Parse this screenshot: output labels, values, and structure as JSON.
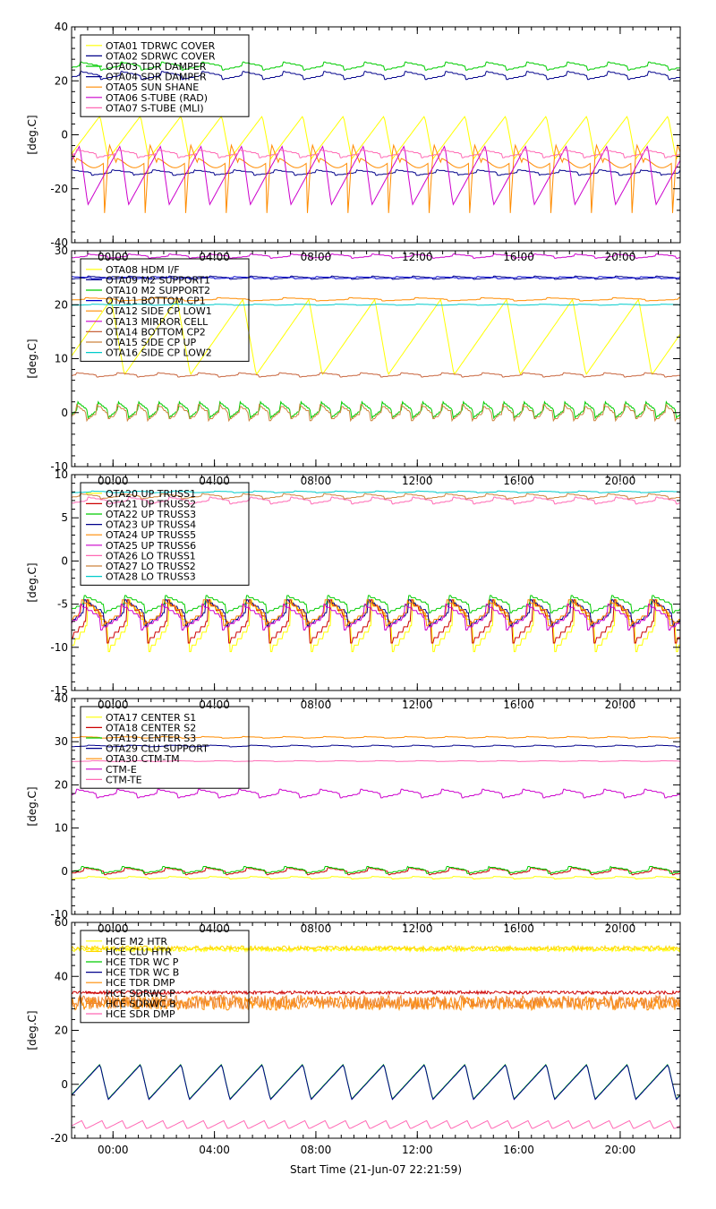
{
  "figure": {
    "xlabel": "Start Time (21-Jun-07 22:21:59)"
  },
  "chart_data": [
    {
      "type": "line",
      "ylabel": "[deg.C]",
      "ylim": [
        -40,
        40
      ],
      "yticks": [
        -40,
        -20,
        0,
        20,
        40
      ],
      "xticks": [
        "00:00",
        "04:00",
        "08:00",
        "12:00",
        "16:00",
        "20:00"
      ],
      "xtick_hours": [
        1.633,
        5.633,
        9.633,
        13.633,
        17.633,
        21.633
      ],
      "show_xtick_labels": false,
      "xlim_hours": [
        0,
        24
      ],
      "legend_position": "top-left",
      "series": [
        {
          "name": "OTA01 TDRWC COVER",
          "color": "#ffff00",
          "mean": -1,
          "amp": 8,
          "period": 1.6,
          "shape": "saw",
          "phase": 0.1
        },
        {
          "name": "OTA02 SDRWC COVER",
          "color": "#00008b",
          "mean": 22,
          "amp": 1.5,
          "period": 1.6,
          "shape": "step",
          "phase": 0.3
        },
        {
          "name": "OTA03 TDR DAMPER",
          "color": "#00cc00",
          "mean": 25.5,
          "amp": 1.5,
          "period": 1.6,
          "shape": "step",
          "phase": 0.3
        },
        {
          "name": "OTA04 SDR DAMPER",
          "color": "#00008b",
          "mean": -14,
          "amp": 1,
          "period": 1.6,
          "shape": "step",
          "phase": 0.5
        },
        {
          "name": "OTA05 SUN SHANE",
          "color": "#ff8c00",
          "mean": -14,
          "amp": 18,
          "period": 1.6,
          "shape": "spike",
          "phase": 0.2
        },
        {
          "name": "OTA06 S-TUBE (RAD)",
          "color": "#cc00cc",
          "mean": -15,
          "amp": 11,
          "period": 1.6,
          "shape": "saw",
          "phase": 0.6
        },
        {
          "name": "OTA07 S-TUBE (MLI)",
          "color": "#ff69b4",
          "mean": -7,
          "amp": 1.5,
          "period": 1.6,
          "shape": "step",
          "phase": 0.4
        }
      ]
    },
    {
      "type": "line",
      "ylabel": "[deg.C]",
      "ylim": [
        -10,
        30
      ],
      "yticks": [
        -10,
        0,
        10,
        20,
        30
      ],
      "xticks": [
        "00:00",
        "04:00",
        "08:00",
        "12:00",
        "16:00",
        "20:00"
      ],
      "xtick_hours": [
        1.633,
        5.633,
        9.633,
        13.633,
        17.633,
        21.633
      ],
      "show_xtick_labels": true,
      "xlim_hours": [
        0,
        24
      ],
      "legend_position": "top-left",
      "series": [
        {
          "name": "OTA08 HDM I/F",
          "color": "#ffff00",
          "mean": 14,
          "amp": 7,
          "period": 2.6,
          "shape": "saw",
          "phase": 0.2
        },
        {
          "name": "OTA09 M2 SUPPORT1",
          "color": "#00008b",
          "mean": 25,
          "amp": 0.3,
          "period": 1.6,
          "shape": "step",
          "phase": 0.1
        },
        {
          "name": "OTA10 M2 SUPPORT2",
          "color": "#00cc00",
          "mean": 0.5,
          "amp": 1.5,
          "period": 0.8,
          "shape": "step",
          "phase": 0.2
        },
        {
          "name": "OTA11 BOTTOM CP1",
          "color": "#0000cd",
          "mean": 25,
          "amp": 0.2,
          "period": 1.6,
          "shape": "step",
          "phase": 0.5
        },
        {
          "name": "OTA12 SIDE CP LOW1",
          "color": "#ff8c00",
          "mean": 21,
          "amp": 0.3,
          "period": 2.6,
          "shape": "step",
          "phase": 0.3
        },
        {
          "name": "OTA13 MIRROR CELL",
          "color": "#cc00cc",
          "mean": 29,
          "amp": 0.4,
          "period": 1.6,
          "shape": "step",
          "phase": 0.1
        },
        {
          "name": "OTA14 BOTTOM CP2",
          "color": "#c8643c",
          "mean": 7,
          "amp": 0.4,
          "period": 1.6,
          "shape": "step",
          "phase": 0.4
        },
        {
          "name": "OTA15 SIDE CP UP",
          "color": "#cd853f",
          "mean": 0,
          "amp": 1.5,
          "period": 0.8,
          "shape": "step",
          "phase": 0.25
        },
        {
          "name": "OTA16 SIDE CP LOW2",
          "color": "#00cccc",
          "mean": 20,
          "amp": 0.1,
          "period": 1.6,
          "shape": "step",
          "phase": 0
        }
      ]
    },
    {
      "type": "line",
      "ylabel": "[deg.C]",
      "ylim": [
        -15,
        10
      ],
      "yticks": [
        -15,
        -10,
        -5,
        0,
        5,
        10
      ],
      "xticks": [
        "00:00",
        "04:00",
        "08:00",
        "12:00",
        "16:00",
        "20:00"
      ],
      "xtick_hours": [
        1.633,
        5.633,
        9.633,
        13.633,
        17.633,
        21.633
      ],
      "show_xtick_labels": true,
      "xlim_hours": [
        0,
        24
      ],
      "legend_position": "top-left",
      "series": [
        {
          "name": "OTA20 UP TRUSS1",
          "color": "#ffff00",
          "mean": -7.5,
          "amp": 3,
          "period": 1.6,
          "shape": "step",
          "phase": 0.1
        },
        {
          "name": "OTA21 UP TRUSS2",
          "color": "#cc0000",
          "mean": -7,
          "amp": 2.5,
          "period": 1.6,
          "shape": "step",
          "phase": 0.15
        },
        {
          "name": "OTA22 UP TRUSS3",
          "color": "#00cc00",
          "mean": -5,
          "amp": 1,
          "period": 1.6,
          "shape": "step",
          "phase": 0.2
        },
        {
          "name": "OTA23 UP TRUSS4",
          "color": "#00008b",
          "mean": -6,
          "amp": 1.5,
          "period": 1.6,
          "shape": "step",
          "phase": 0.2
        },
        {
          "name": "OTA24 UP TRUSS5",
          "color": "#ff8c00",
          "mean": -6,
          "amp": 1.5,
          "period": 1.6,
          "shape": "step",
          "phase": 0.25
        },
        {
          "name": "OTA25 UP TRUSS6",
          "color": "#cc00cc",
          "mean": -6.5,
          "amp": 1.5,
          "period": 1.6,
          "shape": "step",
          "phase": 0.3
        },
        {
          "name": "OTA26 LO TRUSS1",
          "color": "#ff69b4",
          "mean": 7,
          "amp": 0.4,
          "period": 1.6,
          "shape": "step",
          "phase": 0.1
        },
        {
          "name": "OTA27 LO TRUSS2",
          "color": "#cd853f",
          "mean": 7.5,
          "amp": 0.3,
          "period": 1.6,
          "shape": "step",
          "phase": 0.3
        },
        {
          "name": "OTA28 LO TRUSS3",
          "color": "#00cccc",
          "mean": 8,
          "amp": 0.1,
          "period": 1.6,
          "shape": "step",
          "phase": 0
        }
      ]
    },
    {
      "type": "line",
      "ylabel": "[deg.C]",
      "ylim": [
        -10,
        40
      ],
      "yticks": [
        -10,
        0,
        10,
        20,
        30,
        40
      ],
      "xticks": [
        "00:00",
        "04:00",
        "08:00",
        "12:00",
        "16:00",
        "20:00"
      ],
      "xtick_hours": [
        1.633,
        5.633,
        9.633,
        13.633,
        17.633,
        21.633
      ],
      "show_xtick_labels": true,
      "xlim_hours": [
        0,
        24
      ],
      "legend_position": "top-left",
      "series": [
        {
          "name": "OTA17 CENTER S1",
          "color": "#ffff00",
          "mean": -1.5,
          "amp": 0.3,
          "period": 1.6,
          "shape": "step",
          "phase": 0.1
        },
        {
          "name": "OTA18 CENTER S2",
          "color": "#cc0000",
          "mean": 0,
          "amp": 0.8,
          "period": 1.6,
          "shape": "step",
          "phase": 0.2
        },
        {
          "name": "OTA19 CENTER S3",
          "color": "#00cc00",
          "mean": 0.3,
          "amp": 0.8,
          "period": 1.6,
          "shape": "step",
          "phase": 0.25
        },
        {
          "name": "OTA29 CLU SUPPORT",
          "color": "#00008b",
          "mean": 29,
          "amp": 0.2,
          "period": 1.6,
          "shape": "step",
          "phase": 0.1
        },
        {
          "name": "OTA30 CTM-TM",
          "color": "#ff8c00",
          "mean": 31,
          "amp": 0.2,
          "period": 1.6,
          "shape": "step",
          "phase": 0.3
        },
        {
          "name": "CTM-E",
          "color": "#cc00cc",
          "mean": 18,
          "amp": 1,
          "period": 1.6,
          "shape": "step",
          "phase": 0.4
        },
        {
          "name": "CTM-TE",
          "color": "#ff69b4",
          "mean": 25.5,
          "amp": 0.1,
          "period": 1.6,
          "shape": "step",
          "phase": 0
        }
      ]
    },
    {
      "type": "line",
      "ylabel": "[deg.C]",
      "ylim": [
        -20,
        60
      ],
      "yticks": [
        -20,
        0,
        20,
        40,
        60
      ],
      "xticks": [
        "00:00",
        "04:00",
        "08:00",
        "12:00",
        "16:00",
        "20:00"
      ],
      "xtick_hours": [
        1.633,
        5.633,
        9.633,
        13.633,
        17.633,
        21.633
      ],
      "show_xtick_labels": true,
      "xlim_hours": [
        0,
        24
      ],
      "legend_position": "top-left",
      "series": [
        {
          "name": "HCE M2 HTR",
          "color": "#ffff00",
          "mean": 50,
          "amp": 0.8,
          "period": 0.1,
          "shape": "noise",
          "phase": 0
        },
        {
          "name": "HCE CLU HTR",
          "color": "#ffd700",
          "mean": 50.5,
          "amp": 0.8,
          "period": 0.1,
          "shape": "noise",
          "phase": 0.5
        },
        {
          "name": "HCE TDR WC P",
          "color": "#00cc00",
          "mean": 1,
          "amp": 6.5,
          "period": 1.6,
          "shape": "saw",
          "phase": 0.1
        },
        {
          "name": "HCE TDR WC B",
          "color": "#00008b",
          "mean": 0.8,
          "amp": 6.5,
          "period": 1.6,
          "shape": "saw",
          "phase": 0.1
        },
        {
          "name": "HCE TDR DMP",
          "color": "#ff8c00",
          "mean": 30,
          "amp": 2.5,
          "period": 0.1,
          "shape": "noise",
          "phase": 0.2
        },
        {
          "name": "HCE SDRWC P",
          "color": "#cc0000",
          "mean": 34,
          "amp": 0.6,
          "period": 0.1,
          "shape": "noise",
          "phase": 0.3
        },
        {
          "name": "HCE SDRWC B",
          "color": "#ee8833",
          "mean": 30.5,
          "amp": 2.5,
          "period": 0.1,
          "shape": "noise",
          "phase": 0.7
        },
        {
          "name": "HCE SDR DMP",
          "color": "#ff69b4",
          "mean": -15,
          "amp": 1.5,
          "period": 0.8,
          "shape": "saw",
          "phase": 0.3
        }
      ]
    }
  ]
}
